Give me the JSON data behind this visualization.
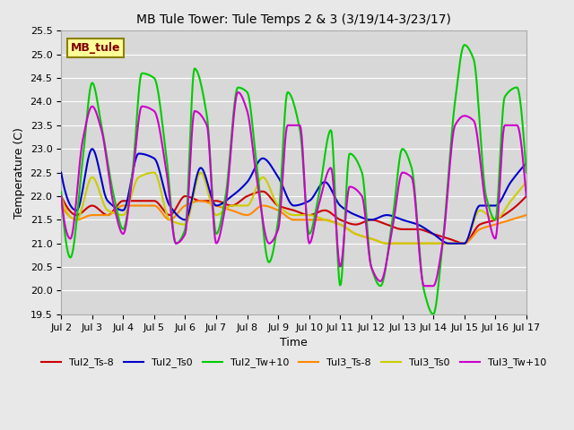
{
  "title": "MB Tule Tower: Tule Temps 2 & 3 (3/19/14-3/23/17)",
  "xlabel": "Time",
  "ylabel": "Temperature (C)",
  "ylim": [
    19.5,
    25.5
  ],
  "xlim": [
    0,
    15
  ],
  "xtick_labels": [
    "Jul 2",
    "Jul 3",
    "Jul 4",
    "Jul 5",
    "Jul 6",
    "Jul 7",
    "Jul 8",
    "Jul 9",
    "Jul 10",
    "Jul 11",
    "Jul 12",
    "Jul 13",
    "Jul 14",
    "Jul 15",
    "Jul 16",
    "Jul 17"
  ],
  "xtick_positions": [
    0,
    1,
    2,
    3,
    4,
    5,
    6,
    7,
    8,
    9,
    10,
    11,
    12,
    13,
    14,
    15
  ],
  "ytick_labels": [
    "19.5",
    "20.0",
    "20.5",
    "21.0",
    "21.5",
    "22.0",
    "22.5",
    "23.0",
    "23.5",
    "24.0",
    "24.5",
    "25.0",
    "25.5"
  ],
  "ytick_positions": [
    19.5,
    20.0,
    20.5,
    21.0,
    21.5,
    22.0,
    22.5,
    23.0,
    23.5,
    24.0,
    24.5,
    25.0,
    25.5
  ],
  "bg_color": "#e8e8e8",
  "plot_bg_color": "#d8d8d8",
  "grid_color": "#ffffff",
  "series": {
    "Tul2_Ts-8": {
      "color": "#cc0000",
      "lw": 1.5
    },
    "Tul2_Ts0": {
      "color": "#0000cc",
      "lw": 1.5
    },
    "Tul2_Tw+10": {
      "color": "#00cc00",
      "lw": 1.5
    },
    "Tul3_Ts-8": {
      "color": "#ff8800",
      "lw": 1.5
    },
    "Tul3_Ts0": {
      "color": "#cccc00",
      "lw": 1.5
    },
    "Tul3_Tw+10": {
      "color": "#cc00cc",
      "lw": 1.5
    }
  },
  "legend_label": "MB_tule",
  "legend_bg": "#ffff99",
  "legend_border": "#8B8000"
}
